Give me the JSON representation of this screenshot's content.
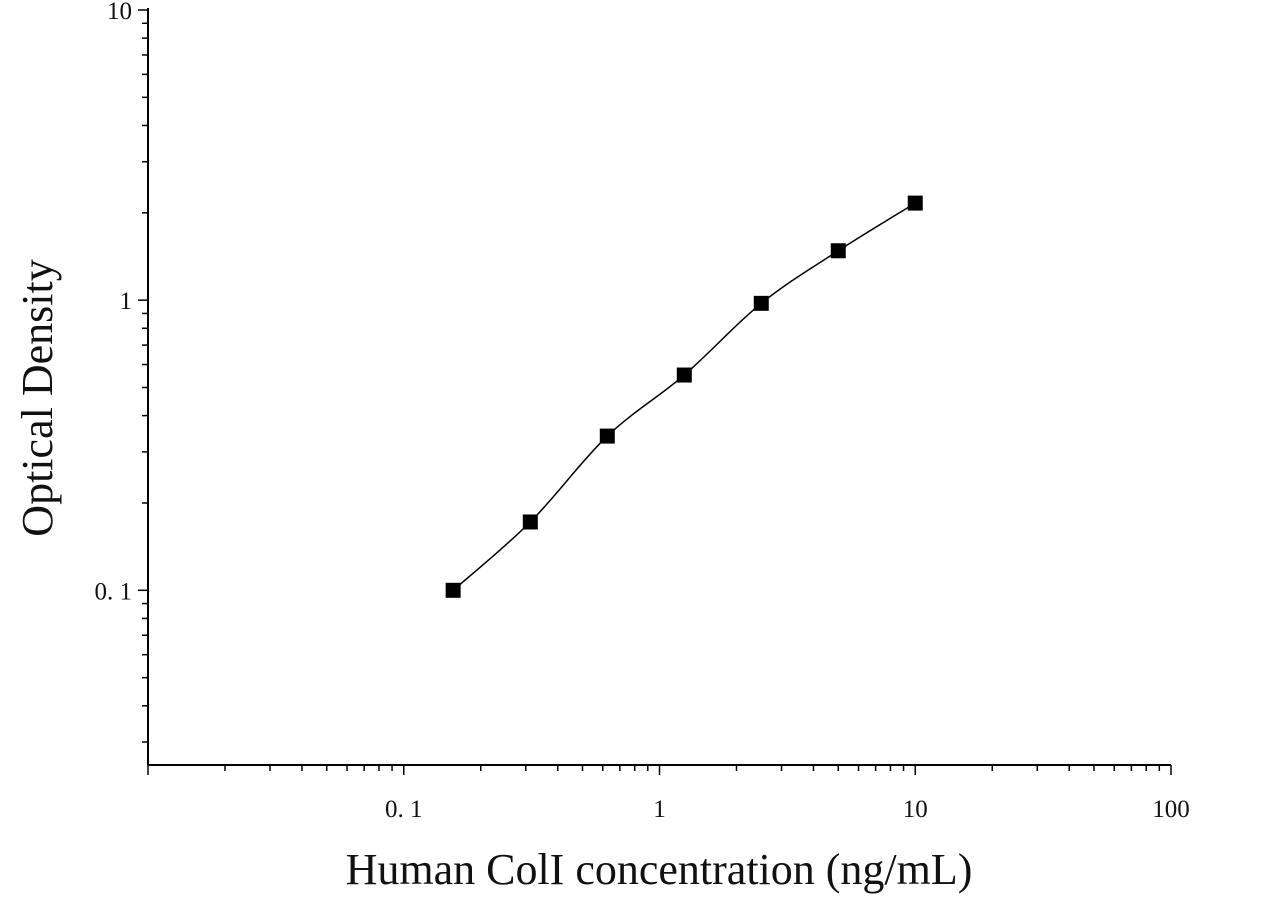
{
  "chart_data": {
    "type": "scatter",
    "title": "",
    "xlabel": "Human ColI concentration (ng/mL)",
    "ylabel": "Optical Density",
    "x_scale": "log",
    "y_scale": "log",
    "xlim": [
      0.01,
      100
    ],
    "ylim": [
      0.025,
      10
    ],
    "x_ticks": [
      {
        "value": 0.1,
        "label": "0. 1"
      },
      {
        "value": 1,
        "label": "1"
      },
      {
        "value": 10,
        "label": "10"
      },
      {
        "value": 100,
        "label": "100"
      }
    ],
    "y_ticks": [
      {
        "value": 0.1,
        "label": "0. 1"
      },
      {
        "value": 1,
        "label": "1"
      },
      {
        "value": 10,
        "label": "10"
      }
    ],
    "grid": false,
    "legend": "none",
    "series": [
      {
        "marker": "square",
        "color": "#000000",
        "x": [
          0.156,
          0.3125,
          0.625,
          1.25,
          2.5,
          5,
          10
        ],
        "y": [
          0.1,
          0.172,
          0.34,
          0.552,
          0.975,
          1.48,
          2.16
        ],
        "fit_line": true
      }
    ]
  }
}
